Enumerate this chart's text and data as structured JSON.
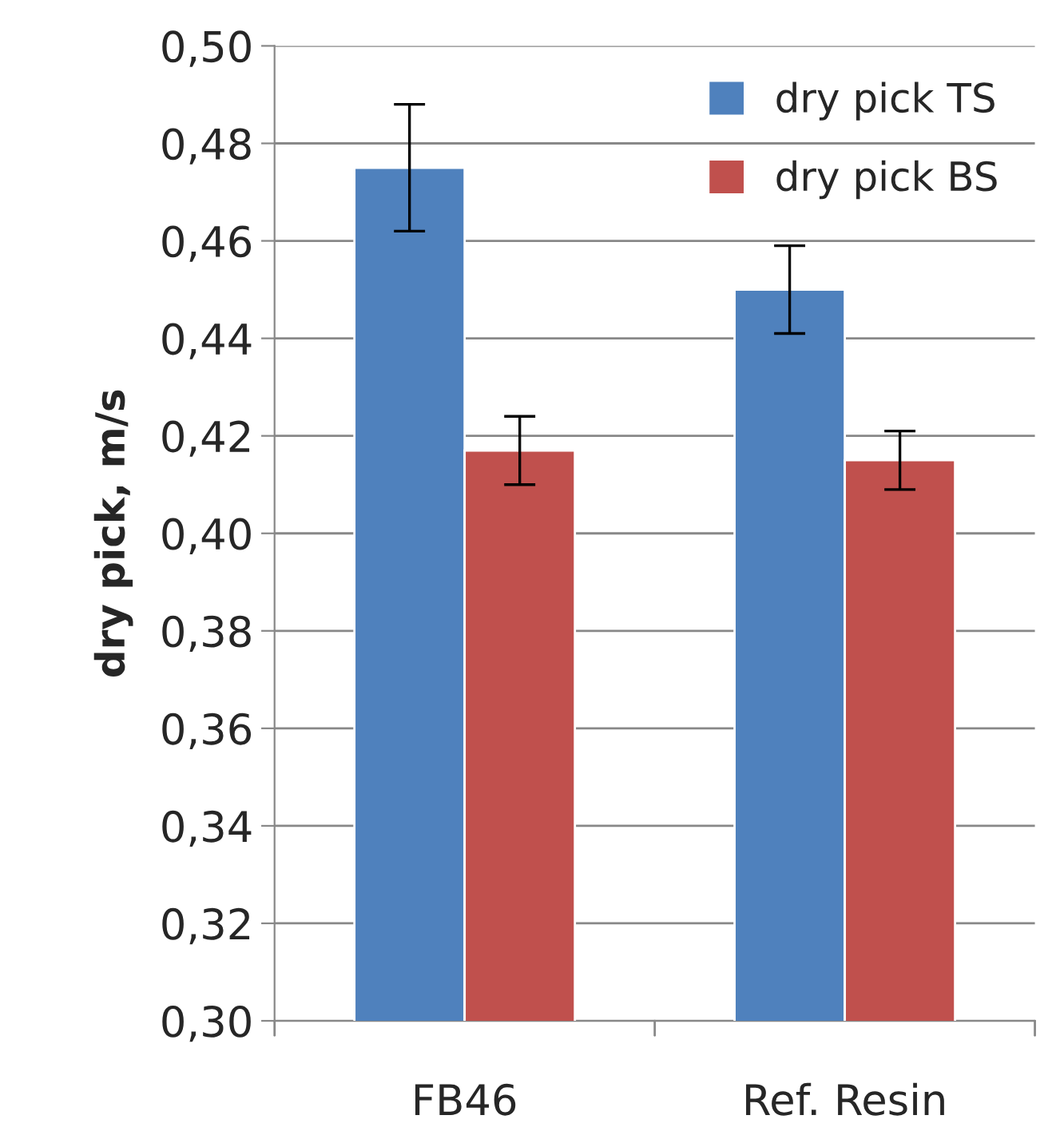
{
  "chart_data": {
    "type": "bar",
    "ylabel": "dry pick, m/s",
    "categories": [
      "FB46",
      "Ref. Resin"
    ],
    "series": [
      {
        "name": "dry pick TS",
        "color": "#4f81bd",
        "values": [
          0.475,
          0.45
        ],
        "errors": [
          0.013,
          0.009
        ]
      },
      {
        "name": "dry pick BS",
        "color": "#c0504d",
        "values": [
          0.417,
          0.415
        ],
        "errors": [
          0.007,
          0.006
        ]
      }
    ],
    "ylim": [
      0.3,
      0.5
    ],
    "yticks": [
      {
        "value": 0.3,
        "label": "0,30"
      },
      {
        "value": 0.32,
        "label": "0,32"
      },
      {
        "value": 0.34,
        "label": "0,34"
      },
      {
        "value": 0.36,
        "label": "0,36"
      },
      {
        "value": 0.38,
        "label": "0,38"
      },
      {
        "value": 0.4,
        "label": "0,40"
      },
      {
        "value": 0.42,
        "label": "0,42"
      },
      {
        "value": 0.44,
        "label": "0,44"
      },
      {
        "value": 0.46,
        "label": "0,46"
      },
      {
        "value": 0.48,
        "label": "0,48"
      },
      {
        "value": 0.5,
        "label": "0,50"
      }
    ],
    "grid": "y",
    "legend": "top right"
  }
}
